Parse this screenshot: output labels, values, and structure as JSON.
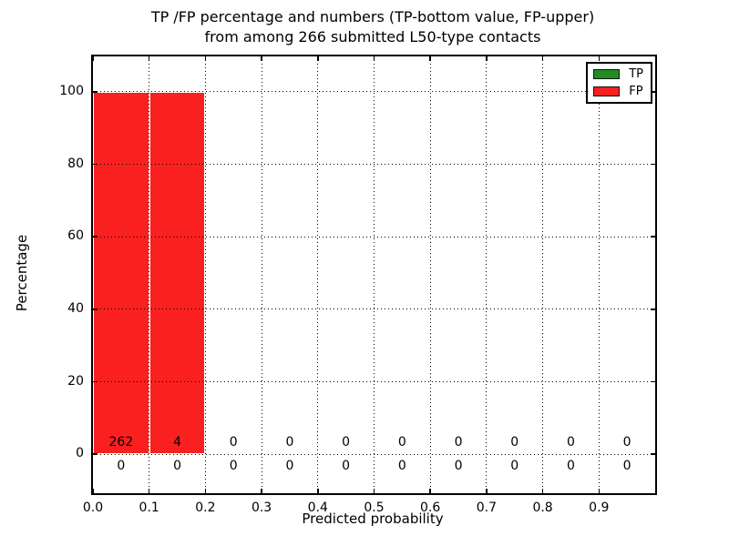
{
  "chart_data": {
    "type": "bar",
    "title_lines": [
      "TP /FP percentage and numbers (TP-bottom value, FP-upper)",
      "from among 266 submitted L50-type contacts"
    ],
    "xlabel": "Predicted probability",
    "ylabel": "Percentage",
    "xlim": [
      0.0,
      1.0
    ],
    "ylim": [
      -10.75,
      109.75
    ],
    "x_ticks": [
      0.0,
      0.1,
      0.2,
      0.3,
      0.4,
      0.5,
      0.6,
      0.7,
      0.8,
      0.9
    ],
    "x_tick_labels": [
      "0.0",
      "0.1",
      "0.2",
      "0.3",
      "0.4",
      "0.5",
      "0.6",
      "0.7",
      "0.8",
      "0.9"
    ],
    "y_ticks": [
      0,
      20,
      40,
      60,
      80,
      100
    ],
    "y_tick_labels": [
      "0",
      "20",
      "40",
      "60",
      "80",
      "100"
    ],
    "grid_style": "dotted",
    "grid_color": "#000000",
    "bar_edge_color": "#ffffff",
    "bin_edges": [
      0.0,
      0.1,
      0.2,
      0.3,
      0.4,
      0.5,
      0.6,
      0.7,
      0.8,
      0.9,
      1.0
    ],
    "bin_centers": [
      0.05,
      0.15,
      0.25,
      0.35,
      0.45,
      0.55,
      0.65,
      0.75,
      0.85,
      0.95
    ],
    "series": [
      {
        "name": "TP",
        "color": "#228b22",
        "count_row": "bottom",
        "percent": [
          0,
          0,
          0,
          0,
          0,
          0,
          0,
          0,
          0,
          0
        ],
        "counts": [
          0,
          0,
          0,
          0,
          0,
          0,
          0,
          0,
          0,
          0
        ]
      },
      {
        "name": "FP",
        "color": "#fb2020",
        "count_row": "top",
        "percent": [
          100,
          100,
          0,
          0,
          0,
          0,
          0,
          0,
          0,
          0
        ],
        "counts": [
          262,
          4,
          0,
          0,
          0,
          0,
          0,
          0,
          0,
          0
        ]
      }
    ],
    "legend_position": "upper right"
  }
}
